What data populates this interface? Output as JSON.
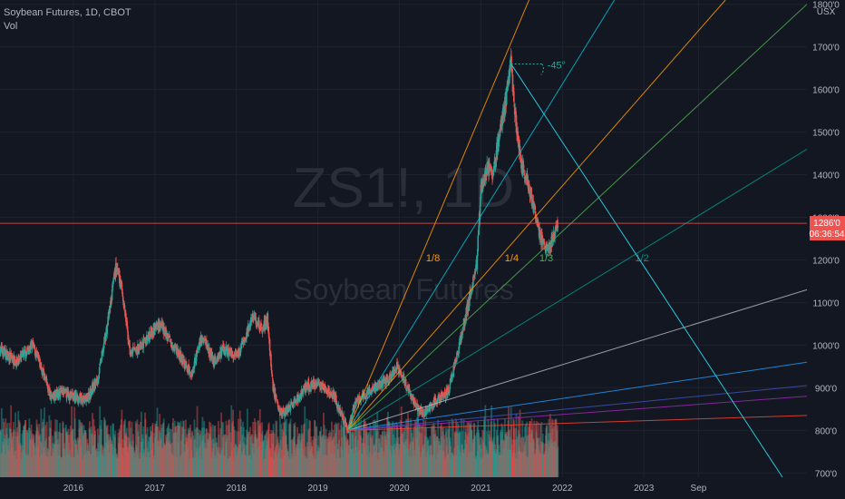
{
  "header": {
    "title": "Soybean Futures, 1D, CBOT",
    "indicator": "Vol"
  },
  "watermark": {
    "symbol": "ZS1!, 1D",
    "name": "Soybean Futures"
  },
  "currency": "USX",
  "price_tag": {
    "price": "1286'0",
    "countdown": "06:36:54"
  },
  "colors": {
    "up": "#26a69a",
    "down": "#ef5350",
    "price_line": "#ef5350"
  },
  "chart_data": {
    "type": "candlestick",
    "title": "",
    "y_axis": {
      "ticks": [
        "700'0",
        "800'0",
        "900'0",
        "1000'0",
        "1100'0",
        "1200'0",
        "1300'0",
        "1400'0",
        "1500'0",
        "1600'0",
        "1700'0",
        "1800'0"
      ],
      "range": [
        690,
        1810
      ]
    },
    "x_axis": {
      "ticks": [
        "2016",
        "2017",
        "2018",
        "2019",
        "2020",
        "2021",
        "2022",
        "2023",
        "Sep"
      ],
      "range": [
        2015.1,
        2025.0
      ]
    },
    "price_path": [
      [
        2015.1,
        990
      ],
      [
        2015.3,
        960
      ],
      [
        2015.5,
        1000
      ],
      [
        2015.62,
        940
      ],
      [
        2015.72,
        880
      ],
      [
        2015.85,
        890
      ],
      [
        2016.0,
        880
      ],
      [
        2016.15,
        870
      ],
      [
        2016.3,
        920
      ],
      [
        2016.42,
        1050
      ],
      [
        2016.52,
        1180
      ],
      [
        2016.58,
        1150
      ],
      [
        2016.7,
        980
      ],
      [
        2016.85,
        1000
      ],
      [
        2016.95,
        1030
      ],
      [
        2017.05,
        1050
      ],
      [
        2017.2,
        1010
      ],
      [
        2017.35,
        960
      ],
      [
        2017.45,
        930
      ],
      [
        2017.55,
        1010
      ],
      [
        2017.62,
        1010
      ],
      [
        2017.72,
        960
      ],
      [
        2017.85,
        990
      ],
      [
        2018.0,
        970
      ],
      [
        2018.12,
        1020
      ],
      [
        2018.2,
        1070
      ],
      [
        2018.3,
        1040
      ],
      [
        2018.38,
        1060
      ],
      [
        2018.45,
        900
      ],
      [
        2018.55,
        840
      ],
      [
        2018.7,
        860
      ],
      [
        2018.85,
        900
      ],
      [
        2019.0,
        910
      ],
      [
        2019.2,
        880
      ],
      [
        2019.37,
        800
      ],
      [
        2019.45,
        860
      ],
      [
        2019.55,
        880
      ],
      [
        2019.7,
        900
      ],
      [
        2019.85,
        920
      ],
      [
        2019.98,
        950
      ],
      [
        2020.1,
        900
      ],
      [
        2020.2,
        860
      ],
      [
        2020.3,
        840
      ],
      [
        2020.45,
        870
      ],
      [
        2020.6,
        890
      ],
      [
        2020.72,
        990
      ],
      [
        2020.85,
        1100
      ],
      [
        2020.95,
        1190
      ],
      [
        2021.0,
        1370
      ],
      [
        2021.08,
        1420
      ],
      [
        2021.15,
        1400
      ],
      [
        2021.22,
        1490
      ],
      [
        2021.32,
        1590
      ],
      [
        2021.37,
        1660
      ],
      [
        2021.42,
        1540
      ],
      [
        2021.5,
        1420
      ],
      [
        2021.58,
        1380
      ],
      [
        2021.66,
        1310
      ],
      [
        2021.74,
        1250
      ],
      [
        2021.82,
        1220
      ],
      [
        2021.9,
        1260
      ],
      [
        2021.95,
        1286
      ]
    ],
    "annotations": {
      "price_line": 1286,
      "angle_label": "-45°",
      "gann_fan": {
        "origin": [
          2019.37,
          800
        ],
        "lines": [
          {
            "label": "1/8",
            "color": "#ff9800",
            "pts": [
              [
                2019.37,
                800
              ],
              [
                2021.7,
                1860
              ]
            ]
          },
          {
            "label": "",
            "color": "#00bcd4",
            "pts": [
              [
                2019.37,
                800
              ],
              [
                2022.8,
                1860
              ]
            ]
          },
          {
            "label": "1/4",
            "color": "#ff9800",
            "pts": [
              [
                2019.37,
                800
              ],
              [
                2024.0,
                1810
              ]
            ]
          },
          {
            "label": "1/3",
            "color": "#4caf50",
            "pts": [
              [
                2019.37,
                800
              ],
              [
                2025.0,
                1800
              ]
            ]
          },
          {
            "label": "1/2",
            "color": "#009688",
            "pts": [
              [
                2019.37,
                800
              ],
              [
                2025.0,
                1460
              ]
            ]
          },
          {
            "label": "",
            "color": "#b2b5be",
            "pts": [
              [
                2019.37,
                800
              ],
              [
                2025.0,
                1130
              ]
            ]
          },
          {
            "label": "",
            "color": "#2196f3",
            "pts": [
              [
                2019.37,
                800
              ],
              [
                2025.0,
                960
              ]
            ]
          },
          {
            "label": "",
            "color": "#3f51b5",
            "pts": [
              [
                2019.37,
                800
              ],
              [
                2025.0,
                905
              ]
            ]
          },
          {
            "label": "",
            "color": "#9c27b0",
            "pts": [
              [
                2019.37,
                800
              ],
              [
                2025.0,
                880
              ]
            ]
          },
          {
            "label": "",
            "color": "#f44336",
            "pts": [
              [
                2019.37,
                800
              ],
              [
                2025.0,
                835
              ]
            ]
          }
        ]
      },
      "descending_line": {
        "color": "#26c6da",
        "pts": [
          [
            2021.37,
            1660
          ],
          [
            2024.7,
            690
          ]
        ]
      }
    }
  }
}
